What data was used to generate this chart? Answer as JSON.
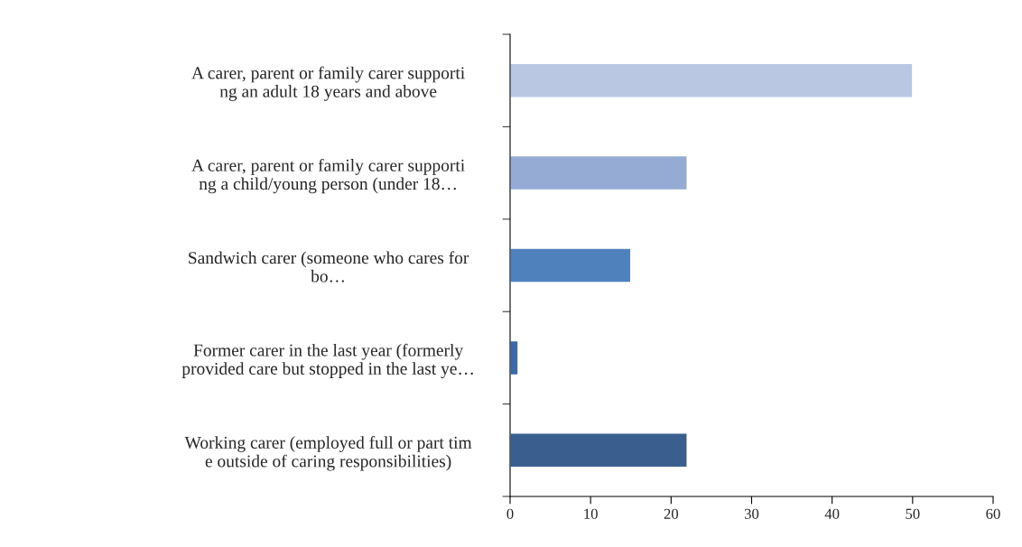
{
  "chart_data": {
    "type": "bar",
    "orientation": "horizontal",
    "categories": [
      "A carer, parent or family carer supporti\nng an adult 18 years and above",
      "A carer, parent or family carer supporti\nng a child/young person (under 18…",
      "Sandwich carer (someone who cares for\nbo…",
      "Former carer in the last year (formerly\nprovided care but stopped in the last ye…",
      "Working carer (employed full or part tim\ne outside of caring responsibilities)"
    ],
    "values": [
      50,
      22,
      15,
      1,
      22
    ],
    "colors": [
      "#b9c7e2",
      "#95abd4",
      "#4f81bd",
      "#3d6aa6",
      "#3a5f8f"
    ],
    "xlim": [
      0,
      60
    ],
    "xticks": [
      0,
      10,
      20,
      30,
      40,
      50,
      60
    ],
    "grid": false,
    "legend": false
  }
}
